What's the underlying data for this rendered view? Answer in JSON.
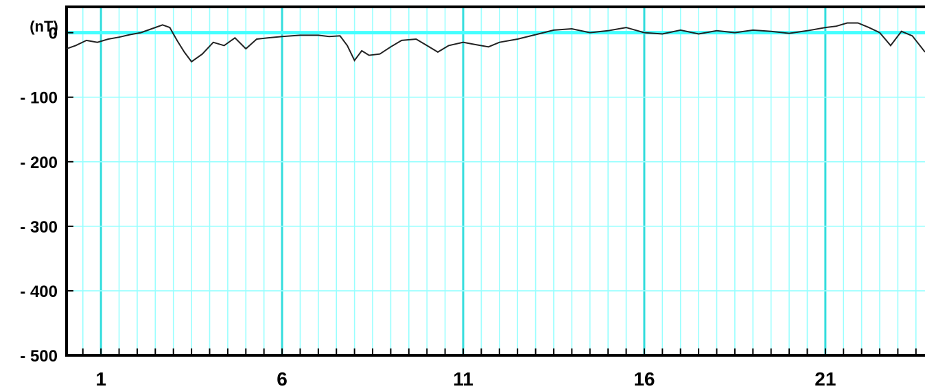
{
  "chart_data": {
    "type": "line",
    "ylabel": "(nT)",
    "ylim": [
      -500,
      40
    ],
    "yticks": [
      0,
      -100,
      -200,
      -300,
      -400,
      -500
    ],
    "ytick_labels": [
      "0",
      "- 100",
      "- 200",
      "- 300",
      "- 400",
      "- 500"
    ],
    "xlim": [
      0.05,
      23.75
    ],
    "xticks": [
      1,
      6,
      11,
      16,
      21
    ],
    "xtick_labels": [
      "1",
      "6",
      "11",
      "16",
      "21"
    ],
    "grid": true,
    "reference_line": 0,
    "colors": {
      "grid": "#99ffff",
      "major_grid": "#33dddd",
      "zero_line": "#44ffff",
      "series": "#222222",
      "axis": "#000000"
    },
    "series": [
      {
        "x": [
          0.05,
          0.3,
          0.6,
          0.9,
          1.2,
          1.5,
          1.8,
          2.1,
          2.4,
          2.7,
          2.9,
          3.1,
          3.3,
          3.5,
          3.8,
          4.1,
          4.4,
          4.7,
          5.0,
          5.3,
          5.6,
          6.0,
          6.5,
          7.0,
          7.3,
          7.6,
          7.8,
          8.0,
          8.2,
          8.4,
          8.7,
          9.0,
          9.3,
          9.7,
          10.0,
          10.3,
          10.6,
          11.0,
          11.3,
          11.7,
          12.0,
          12.5,
          13.0,
          13.5,
          14.0,
          14.5,
          15.0,
          15.5,
          16.0,
          16.5,
          17.0,
          17.5,
          18.0,
          18.5,
          19.0,
          19.5,
          20.0,
          20.5,
          21.0,
          21.3,
          21.6,
          21.9,
          22.2,
          22.5,
          22.8,
          23.1,
          23.4,
          23.75
        ],
        "y": [
          -25,
          -20,
          -12,
          -15,
          -10,
          -7,
          -3,
          0,
          6,
          12,
          8,
          -12,
          -30,
          -45,
          -33,
          -15,
          -20,
          -8,
          -25,
          -10,
          -8,
          -6,
          -4,
          -4,
          -6,
          -5,
          -20,
          -43,
          -28,
          -35,
          -33,
          -22,
          -12,
          -10,
          -20,
          -30,
          -20,
          -15,
          -18,
          -22,
          -15,
          -10,
          -3,
          4,
          6,
          0,
          3,
          8,
          0,
          -2,
          4,
          -2,
          3,
          0,
          4,
          2,
          -1,
          3,
          8,
          10,
          15,
          15,
          8,
          0,
          -20,
          2,
          -5,
          -30
        ]
      }
    ]
  }
}
